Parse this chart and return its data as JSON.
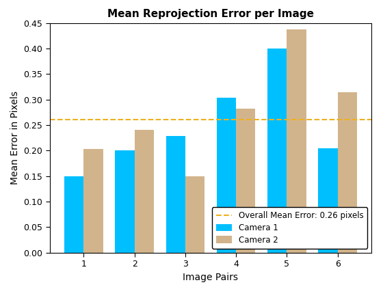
{
  "title": "Mean Reprojection Error per Image",
  "xlabel": "Image Pairs",
  "ylabel": "Mean Error in Pixels",
  "categories": [
    1,
    2,
    3,
    4,
    5,
    6
  ],
  "camera1": [
    0.15,
    0.2,
    0.228,
    0.304,
    0.4,
    0.205
  ],
  "camera2": [
    0.203,
    0.24,
    0.15,
    0.282,
    0.438,
    0.314
  ],
  "overall_mean": 0.26,
  "color_camera1": "#00BFFF",
  "color_camera2": "#D2B48C",
  "color_mean_line": "#EDB120",
  "ylim": [
    0,
    0.45
  ],
  "yticks": [
    0,
    0.05,
    0.1,
    0.15,
    0.2,
    0.25,
    0.3,
    0.35,
    0.4,
    0.45
  ],
  "bar_width": 0.38,
  "legend_labels": [
    "Camera 1",
    "Camera 2",
    "Overall Mean Error: 0.26 pixels"
  ],
  "title_fontsize": 11,
  "label_fontsize": 10,
  "tick_fontsize": 9
}
